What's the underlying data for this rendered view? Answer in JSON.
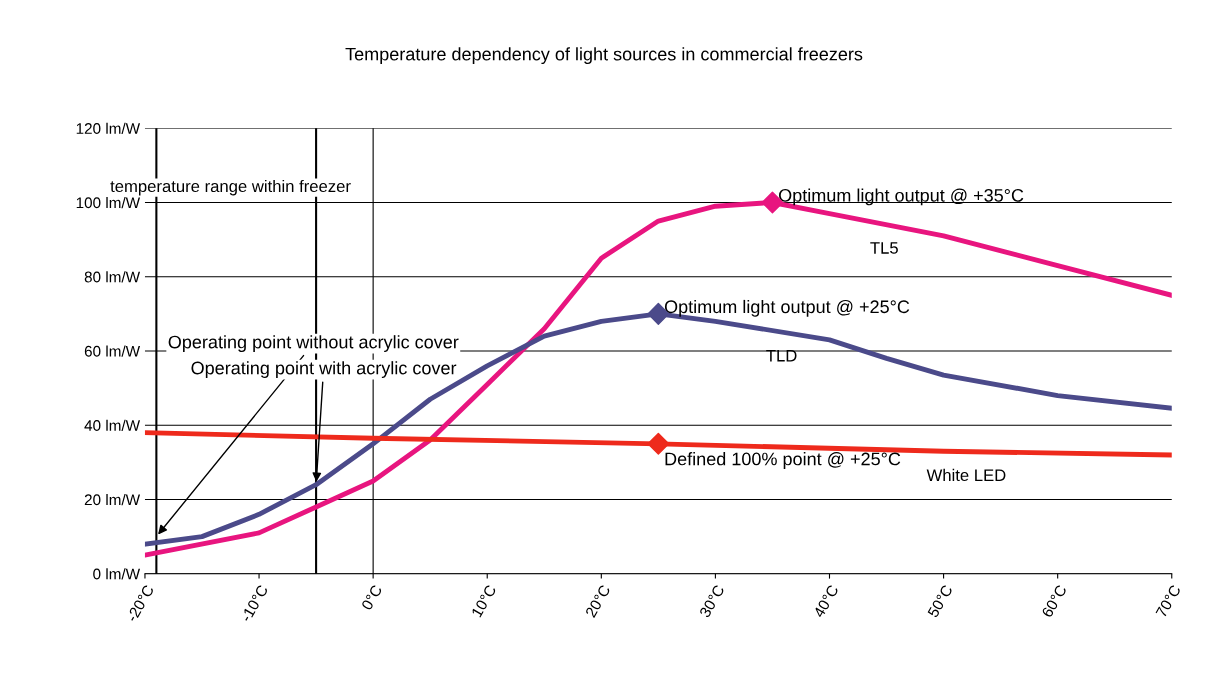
{
  "chart_data": {
    "type": "line",
    "title": "Temperature dependency of light sources in commercial freezers",
    "xlim": [
      -20,
      70
    ],
    "xticks": [
      {
        "value": -20,
        "label": "-20°C"
      },
      {
        "value": -10,
        "label": "-10°C"
      },
      {
        "value": 0,
        "label": "0°C"
      },
      {
        "value": 10,
        "label": "10°C"
      },
      {
        "value": 20,
        "label": "20°C"
      },
      {
        "value": 30,
        "label": "30°C"
      },
      {
        "value": 40,
        "label": "40°C"
      },
      {
        "value": 50,
        "label": "50°C"
      },
      {
        "value": 60,
        "label": "60°C"
      },
      {
        "value": 70,
        "label": "70°C"
      }
    ],
    "ylim": [
      0,
      120
    ],
    "yticks": [
      {
        "value": 0,
        "label": "0 lm/W"
      },
      {
        "value": 20,
        "label": "20 lm/W"
      },
      {
        "value": 40,
        "label": "40 lm/W"
      },
      {
        "value": 60,
        "label": "60 lm/W"
      },
      {
        "value": 80,
        "label": "80 lm/W"
      },
      {
        "value": 100,
        "label": "100 lm/W"
      },
      {
        "value": 120,
        "label": "120 lm/W"
      }
    ],
    "grid": "y",
    "line_style": "solid",
    "marker": "none",
    "series": [
      {
        "name": "TL5",
        "color": "#e8157f",
        "x": [
          -20,
          -10,
          -5,
          0,
          5,
          10,
          15,
          20,
          25,
          30,
          35,
          40,
          50,
          60,
          70
        ],
        "values": [
          5,
          11,
          18,
          25,
          36,
          51,
          66,
          85,
          95,
          99,
          100,
          97,
          91,
          83,
          75
        ]
      },
      {
        "name": "TLD",
        "color": "#4b4a8a",
        "x": [
          -20,
          -15,
          -10,
          -5,
          0,
          5,
          10,
          15,
          20,
          25,
          30,
          40,
          45,
          50,
          60,
          70
        ],
        "values": [
          8,
          10,
          16,
          24,
          35,
          47,
          56,
          64,
          68,
          70,
          68,
          63,
          58,
          53.5,
          48,
          44.6
        ]
      },
      {
        "name": "White LED",
        "color": "#ee2a1c",
        "x": [
          -20,
          0,
          25,
          50,
          70
        ],
        "values": [
          38,
          36.5,
          35,
          33,
          32
        ]
      },
      {
        "type": "scatter",
        "marker": "diamond",
        "color": "#e8157f",
        "x": [
          35
        ],
        "values": [
          100
        ]
      },
      {
        "type": "scatter",
        "marker": "diamond",
        "color": "#4b4a8a",
        "x": [
          25
        ],
        "values": [
          70
        ]
      },
      {
        "type": "scatter",
        "marker": "diamond",
        "color": "#ee2a1c",
        "x": [
          25
        ],
        "values": [
          35
        ]
      }
    ],
    "ref_lines": [
      {
        "axis": "x",
        "value": -19,
        "color": "#000000"
      },
      {
        "axis": "x",
        "value": -5,
        "color": "#000000"
      },
      {
        "axis": "x",
        "value": 0,
        "color": "#000000"
      }
    ],
    "annotations": [
      "temperature range within freezer",
      {
        "text": "Operating point without acrylic cover",
        "x": -19,
        "y": 10
      },
      {
        "text": "Operating point with acrylic cover",
        "x": -5,
        "y": 24
      },
      {
        "text": "Optimum light output @ +35°C",
        "x": 35,
        "y": 100
      },
      {
        "text": "Optimum light output @ +25°C",
        "x": 25,
        "y": 70
      },
      {
        "text": "Defined 100% point @ +25°C",
        "x": 25,
        "y": 35
      }
    ]
  }
}
